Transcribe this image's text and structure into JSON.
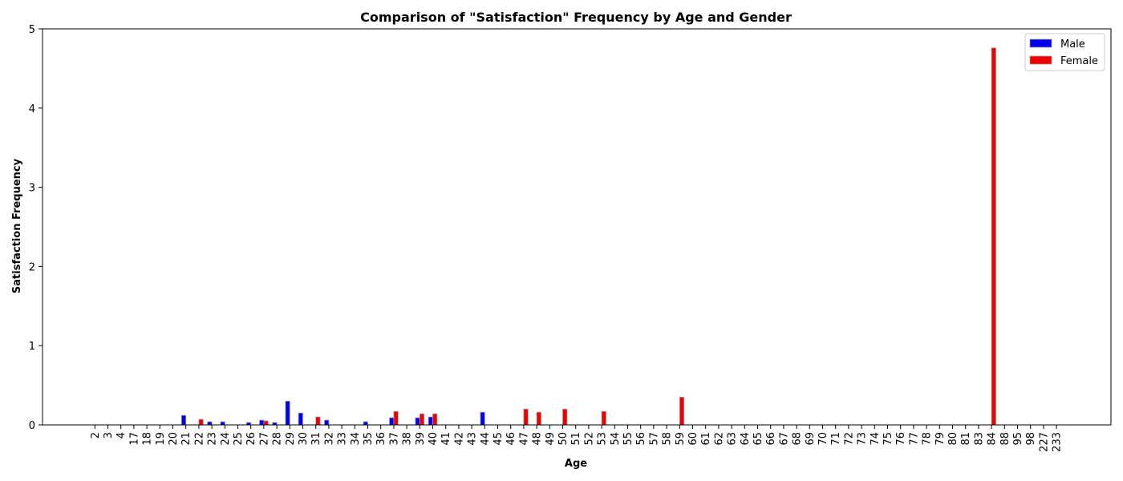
{
  "chart_data": {
    "type": "bar",
    "title": "Comparison of \"Satisfaction\" Frequency by Age and Gender",
    "xlabel": "Age",
    "ylabel": "Satisfaction Frequency",
    "ylim": [
      0,
      5
    ],
    "yticks": [
      "0",
      "1",
      "2",
      "3",
      "4",
      "5"
    ],
    "categories": [
      "2",
      "3",
      "4",
      "17",
      "18",
      "19",
      "20",
      "21",
      "22",
      "23",
      "24",
      "25",
      "26",
      "27",
      "28",
      "29",
      "30",
      "31",
      "32",
      "33",
      "34",
      "35",
      "36",
      "37",
      "38",
      "39",
      "40",
      "41",
      "42",
      "43",
      "44",
      "45",
      "46",
      "47",
      "48",
      "49",
      "50",
      "51",
      "52",
      "53",
      "54",
      "55",
      "56",
      "57",
      "58",
      "59",
      "60",
      "61",
      "62",
      "63",
      "64",
      "65",
      "66",
      "67",
      "68",
      "69",
      "70",
      "71",
      "72",
      "73",
      "74",
      "75",
      "76",
      "77",
      "78",
      "79",
      "80",
      "81",
      "83",
      "84",
      "88",
      "95",
      "98",
      "227",
      "233"
    ],
    "series": [
      {
        "name": "Male",
        "color": "#0000ee",
        "values": [
          0,
          0,
          0,
          0,
          0,
          0,
          0,
          0.12,
          0,
          0.04,
          0.04,
          0,
          0.03,
          0.06,
          0.03,
          0.3,
          0.15,
          0,
          0.06,
          0,
          0,
          0.04,
          0,
          0.09,
          0,
          0.09,
          0.1,
          0,
          0,
          0,
          0.16,
          0,
          0,
          0,
          0,
          0,
          0,
          0,
          0,
          0,
          0,
          0,
          0,
          0,
          0,
          0,
          0,
          0,
          0,
          0,
          0,
          0,
          0,
          0,
          0,
          0,
          0,
          0,
          0,
          0,
          0,
          0,
          0,
          0,
          0,
          0,
          0,
          0,
          0,
          0,
          0,
          0,
          0,
          0,
          0
        ]
      },
      {
        "name": "Female",
        "color": "#ee0000",
        "values": [
          0,
          0,
          0,
          0,
          0,
          0,
          0,
          0,
          0.07,
          0,
          0,
          0,
          0,
          0.05,
          0,
          0,
          0,
          0.1,
          0,
          0,
          0,
          0,
          0,
          0.17,
          0,
          0.14,
          0.14,
          0,
          0,
          0,
          0,
          0,
          0,
          0.2,
          0.16,
          0,
          0.2,
          0,
          0,
          0.17,
          0,
          0,
          0,
          0,
          0,
          0.35,
          0,
          0,
          0,
          0,
          0,
          0,
          0,
          0,
          0,
          0,
          0,
          0,
          0,
          0,
          0,
          0,
          0,
          0,
          0,
          0,
          0,
          0,
          0,
          4.76,
          0,
          0,
          0,
          0,
          0
        ]
      }
    ],
    "legend_position": "top-right",
    "grid": false
  }
}
